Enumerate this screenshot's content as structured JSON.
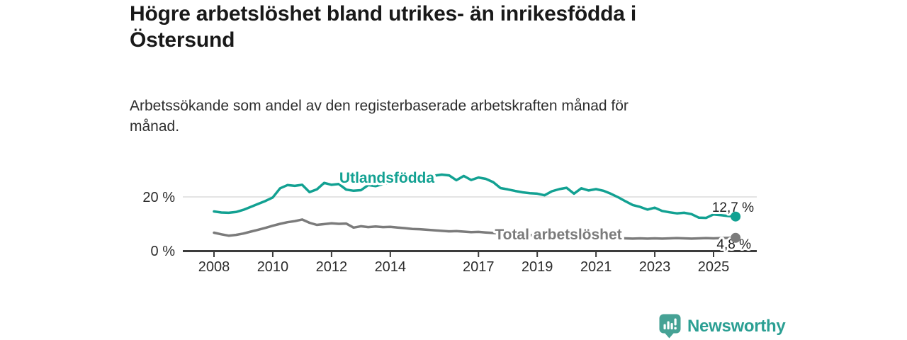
{
  "chart_data": {
    "type": "line",
    "title": "Högre arbetslöshet bland utrikes- än inrikesfödda i Östersund",
    "subtitle": "Arbetssökande som andel av den registerbaserade arbetskraften månad för månad.",
    "xlim": [
      2008,
      2025.75
    ],
    "ylim": [
      0,
      30
    ],
    "grid": "horizontal gridline at 20% only",
    "legend_position": "inline labels on lines",
    "x_ticks": [
      2008,
      2010,
      2012,
      2014,
      2017,
      2019,
      2021,
      2023,
      2025
    ],
    "y_ticks": [
      {
        "value": 0,
        "label": "0 %"
      },
      {
        "value": 20,
        "label": "20 %"
      }
    ],
    "series": [
      {
        "name": "Utlandsfödda",
        "color": "#12a192",
        "end_label": "12,7 %",
        "end_value": 12.7,
        "x_start": 2008,
        "x_step": 0.25,
        "values": [
          14.6,
          14.2,
          14.1,
          14.4,
          15.2,
          16.3,
          17.4,
          18.5,
          19.8,
          23.2,
          24.4,
          24.1,
          24.5,
          21.8,
          22.8,
          25.2,
          24.5,
          24.8,
          22.7,
          22.3,
          22.5,
          24.4,
          24.0,
          24.8,
          25.2,
          25.7,
          26.1,
          26.6,
          27.0,
          27.5,
          27.9,
          28.3,
          28.0,
          26.2,
          27.8,
          26.3,
          27.2,
          26.7,
          25.5,
          23.3,
          22.8,
          22.2,
          21.7,
          21.4,
          21.2,
          20.6,
          22.1,
          22.9,
          23.4,
          21.2,
          23.2,
          22.4,
          22.9,
          22.3,
          21.2,
          19.9,
          18.4,
          17.0,
          16.3,
          15.3,
          16.0,
          14.8,
          14.3,
          13.9,
          14.1,
          13.6,
          12.3,
          12.2,
          13.5,
          13.2,
          12.9,
          12.7
        ]
      },
      {
        "name": "Total arbetslöshet",
        "color": "#7b7b7b",
        "end_label": "4,8 %",
        "end_value": 4.8,
        "x_start": 2008,
        "x_step": 0.25,
        "values": [
          6.7,
          6.1,
          5.6,
          5.9,
          6.4,
          7.1,
          7.8,
          8.5,
          9.3,
          10.0,
          10.6,
          11.0,
          11.6,
          10.4,
          9.6,
          9.9,
          10.2,
          10.0,
          10.1,
          8.6,
          9.1,
          8.8,
          9.0,
          8.8,
          8.9,
          8.6,
          8.4,
          8.1,
          8.0,
          7.8,
          7.6,
          7.4,
          7.2,
          7.3,
          7.1,
          6.9,
          7.0,
          6.8,
          6.6,
          6.4,
          6.2,
          6.0,
          5.9,
          5.8,
          5.7,
          5.6,
          5.7,
          5.9,
          6.3,
          6.6,
          6.4,
          6.1,
          5.8,
          5.4,
          5.0,
          4.7,
          4.6,
          4.5,
          4.6,
          4.5,
          4.6,
          4.5,
          4.6,
          4.7,
          4.6,
          4.5,
          4.6,
          4.7,
          4.6,
          4.7,
          4.8,
          4.8
        ]
      }
    ]
  },
  "colors": {
    "accent_teal": "#12a192",
    "series_gray": "#7b7b7b",
    "axis": "#3c3c3c",
    "gridline": "#dcdcdc",
    "title_text": "#191919",
    "brand_teal": "#2b9f93",
    "logo_icon_teal": "#46a295"
  },
  "footer": {
    "brand": "Newsworthy",
    "logo_icon": "bar-chart-speech-bubble"
  }
}
